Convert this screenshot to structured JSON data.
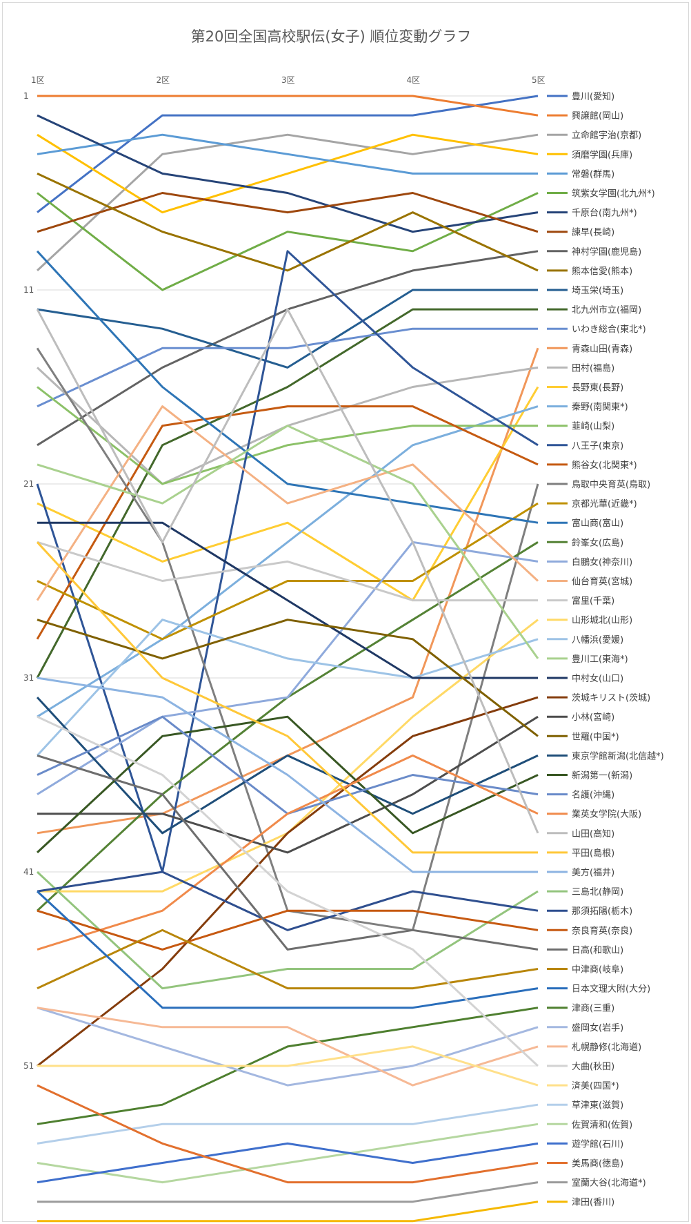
{
  "chart_data": {
    "type": "line",
    "title": "第20回全国高校駅伝(女子) 順位変動グラフ",
    "categories": [
      "1区",
      "2区",
      "3区",
      "4区",
      "5区"
    ],
    "y_ticks": [
      1,
      11,
      21,
      31,
      41,
      51
    ],
    "ylim": [
      1,
      58
    ],
    "y_reversed": true,
    "grid": "horizontal",
    "legend_position": "right",
    "series": [
      {
        "name": "豊川(愛知)",
        "color": "#4472C4",
        "values": [
          7,
          2,
          2,
          2,
          1
        ]
      },
      {
        "name": "興譲館(岡山)",
        "color": "#ED7D31",
        "values": [
          1,
          1,
          1,
          1,
          2
        ]
      },
      {
        "name": "立命館宇治(京都)",
        "color": "#A5A5A5",
        "values": [
          10,
          4,
          3,
          4,
          3
        ]
      },
      {
        "name": "須磨学園(兵庫)",
        "color": "#FFC000",
        "values": [
          3,
          7,
          5,
          3,
          4
        ]
      },
      {
        "name": "常磐(群馬)",
        "color": "#5B9BD5",
        "values": [
          4,
          3,
          4,
          5,
          5
        ]
      },
      {
        "name": "筑紫女学園(北九州*)",
        "color": "#70AD47",
        "values": [
          6,
          11,
          8,
          9,
          6
        ]
      },
      {
        "name": "千原台(南九州*)",
        "color": "#264478",
        "values": [
          2,
          5,
          6,
          8,
          7
        ]
      },
      {
        "name": "諫早(長崎)",
        "color": "#9E480E",
        "values": [
          8,
          6,
          7,
          6,
          8
        ]
      },
      {
        "name": "神村学園(鹿児島)",
        "color": "#636363",
        "values": [
          19,
          15,
          12,
          10,
          9
        ]
      },
      {
        "name": "熊本信愛(熊本)",
        "color": "#997300",
        "values": [
          5,
          8,
          10,
          7,
          10
        ]
      },
      {
        "name": "埼玉栄(埼玉)",
        "color": "#255E91",
        "values": [
          12,
          13,
          15,
          11,
          11
        ]
      },
      {
        "name": "北九州市立(福岡)",
        "color": "#43682B",
        "values": [
          31,
          19,
          16,
          12,
          12
        ]
      },
      {
        "name": "いわき総合(東北*)",
        "color": "#698ED0",
        "values": [
          17,
          14,
          14,
          13,
          13
        ]
      },
      {
        "name": "青森山田(青森)",
        "color": "#F1975A",
        "values": [
          39,
          38,
          35,
          32,
          14
        ]
      },
      {
        "name": "田村(福島)",
        "color": "#B7B7B7",
        "values": [
          15,
          21,
          18,
          16,
          15
        ]
      },
      {
        "name": "長野東(長野)",
        "color": "#FFCD33",
        "values": [
          22,
          25,
          23,
          27,
          16
        ]
      },
      {
        "name": "秦野(南関東*)",
        "color": "#7CAFDD",
        "values": [
          33,
          29,
          24,
          19,
          17
        ]
      },
      {
        "name": "韮崎(山梨)",
        "color": "#8CC168",
        "values": [
          16,
          21,
          19,
          18,
          18
        ]
      },
      {
        "name": "八王子(東京)",
        "color": "#2F5597",
        "values": [
          21,
          41,
          9,
          15,
          19
        ]
      },
      {
        "name": "熊谷女(北関東*)",
        "color": "#C55A11",
        "values": [
          29,
          18,
          17,
          17,
          20
        ]
      },
      {
        "name": "鳥取中央育英(鳥取)",
        "color": "#7F7F7F",
        "values": [
          14,
          24,
          43,
          44,
          21
        ]
      },
      {
        "name": "京都光華(近畿*)",
        "color": "#BF9000",
        "values": [
          26,
          29,
          26,
          26,
          22
        ]
      },
      {
        "name": "富山商(富山)",
        "color": "#2E75B6",
        "values": [
          9,
          16,
          21,
          22,
          23
        ]
      },
      {
        "name": "鈴峯女(広島)",
        "color": "#548235",
        "values": [
          43,
          37,
          32,
          28,
          24
        ]
      },
      {
        "name": "白鵬女(神奈川)",
        "color": "#8FAADC",
        "values": [
          37,
          33,
          32,
          24,
          25
        ]
      },
      {
        "name": "仙台育英(宮城)",
        "color": "#F4B183",
        "values": [
          27,
          17,
          22,
          20,
          26
        ]
      },
      {
        "name": "富里(千葉)",
        "color": "#C9C9C9",
        "values": [
          24,
          26,
          25,
          27,
          27
        ]
      },
      {
        "name": "山形城北(山形)",
        "color": "#FFD966",
        "values": [
          42,
          42,
          39,
          33,
          28
        ]
      },
      {
        "name": "八幡浜(愛媛)",
        "color": "#9DC3E6",
        "values": [
          35,
          28,
          30,
          31,
          29
        ]
      },
      {
        "name": "豊川工(東海*)",
        "color": "#A9D18E",
        "values": [
          20,
          22,
          18,
          21,
          30
        ]
      },
      {
        "name": "中村女(山口)",
        "color": "#1F3864",
        "values": [
          23,
          23,
          27,
          31,
          31
        ]
      },
      {
        "name": "茨城キリスト(茨城)",
        "color": "#843C0C",
        "values": [
          51,
          46,
          39,
          34,
          32
        ]
      },
      {
        "name": "小林(宮崎)",
        "color": "#4D4D4D",
        "values": [
          38,
          38,
          40,
          37,
          33
        ]
      },
      {
        "name": "世羅(中国*)",
        "color": "#7F6000",
        "values": [
          28,
          30,
          28,
          29,
          34
        ]
      },
      {
        "name": "東京学館新潟(北信越*)",
        "color": "#1F4E79",
        "values": [
          32,
          39,
          35,
          38,
          35
        ]
      },
      {
        "name": "新潟第一(新潟)",
        "color": "#385723",
        "values": [
          40,
          34,
          33,
          39,
          36
        ]
      },
      {
        "name": "名護(沖縄)",
        "color": "#6A8BC9",
        "values": [
          36,
          33,
          38,
          36,
          37
        ]
      },
      {
        "name": "業英女学院(大阪)",
        "color": "#F08A4B",
        "values": [
          45,
          43,
          38,
          35,
          38
        ]
      },
      {
        "name": "山田(高知)",
        "color": "#BDBDBD",
        "values": [
          12,
          24,
          12,
          24,
          39
        ]
      },
      {
        "name": "平田(島根)",
        "color": "#FFC839",
        "values": [
          24,
          31,
          34,
          40,
          40
        ]
      },
      {
        "name": "美方(福井)",
        "color": "#8DB4E2",
        "values": [
          31,
          32,
          36,
          41,
          41
        ]
      },
      {
        "name": "三島北(静岡)",
        "color": "#93C47D",
        "values": [
          41,
          47,
          46,
          46,
          42
        ]
      },
      {
        "name": "那須拓陽(栃木)",
        "color": "#2F4F8F",
        "values": [
          42,
          41,
          44,
          42,
          43
        ]
      },
      {
        "name": "奈良育英(奈良)",
        "color": "#C65911",
        "values": [
          43,
          45,
          43,
          43,
          44
        ]
      },
      {
        "name": "日高(和歌山)",
        "color": "#6E6E6E",
        "values": [
          35,
          37,
          45,
          44,
          45
        ]
      },
      {
        "name": "中津商(岐阜)",
        "color": "#B8860B",
        "values": [
          47,
          44,
          47,
          47,
          46
        ]
      },
      {
        "name": "日本文理大附(大分)",
        "color": "#2A6EBB",
        "values": [
          42,
          48,
          48,
          48,
          47
        ]
      },
      {
        "name": "津商(三重)",
        "color": "#4E7F2F",
        "values": [
          54,
          53,
          50,
          49,
          48
        ]
      },
      {
        "name": "盛岡女(岩手)",
        "color": "#A4B8E0",
        "values": [
          48,
          50,
          52,
          51,
          49
        ]
      },
      {
        "name": "札幌静修(北海道)",
        "color": "#F6B995",
        "values": [
          48,
          49,
          49,
          52,
          50
        ]
      },
      {
        "name": "大曲(秋田)",
        "color": "#D3D3D3",
        "values": [
          33,
          36,
          42,
          45,
          51
        ]
      },
      {
        "name": "済美(四国*)",
        "color": "#FFE08A",
        "values": [
          51,
          51,
          51,
          50,
          52
        ]
      },
      {
        "name": "草津東(滋賀)",
        "color": "#B4CFEA",
        "values": [
          55,
          54,
          54,
          54,
          53
        ]
      },
      {
        "name": "佐賀清和(佐賀)",
        "color": "#B5D7A0",
        "values": [
          56,
          57,
          56,
          55,
          54
        ]
      },
      {
        "name": "遊学館(石川)",
        "color": "#3F6FCC",
        "values": [
          57,
          56,
          55,
          56,
          55
        ]
      },
      {
        "name": "美馬商(徳島)",
        "color": "#E2702E",
        "values": [
          52,
          55,
          57,
          57,
          56
        ]
      },
      {
        "name": "室蘭大谷(北海道*)",
        "color": "#9B9B9B",
        "values": [
          58,
          58,
          58,
          58,
          57
        ]
      },
      {
        "name": "津田(香川)",
        "color": "#F5B800",
        "values": [
          59,
          59,
          59,
          59,
          58
        ]
      }
    ]
  }
}
